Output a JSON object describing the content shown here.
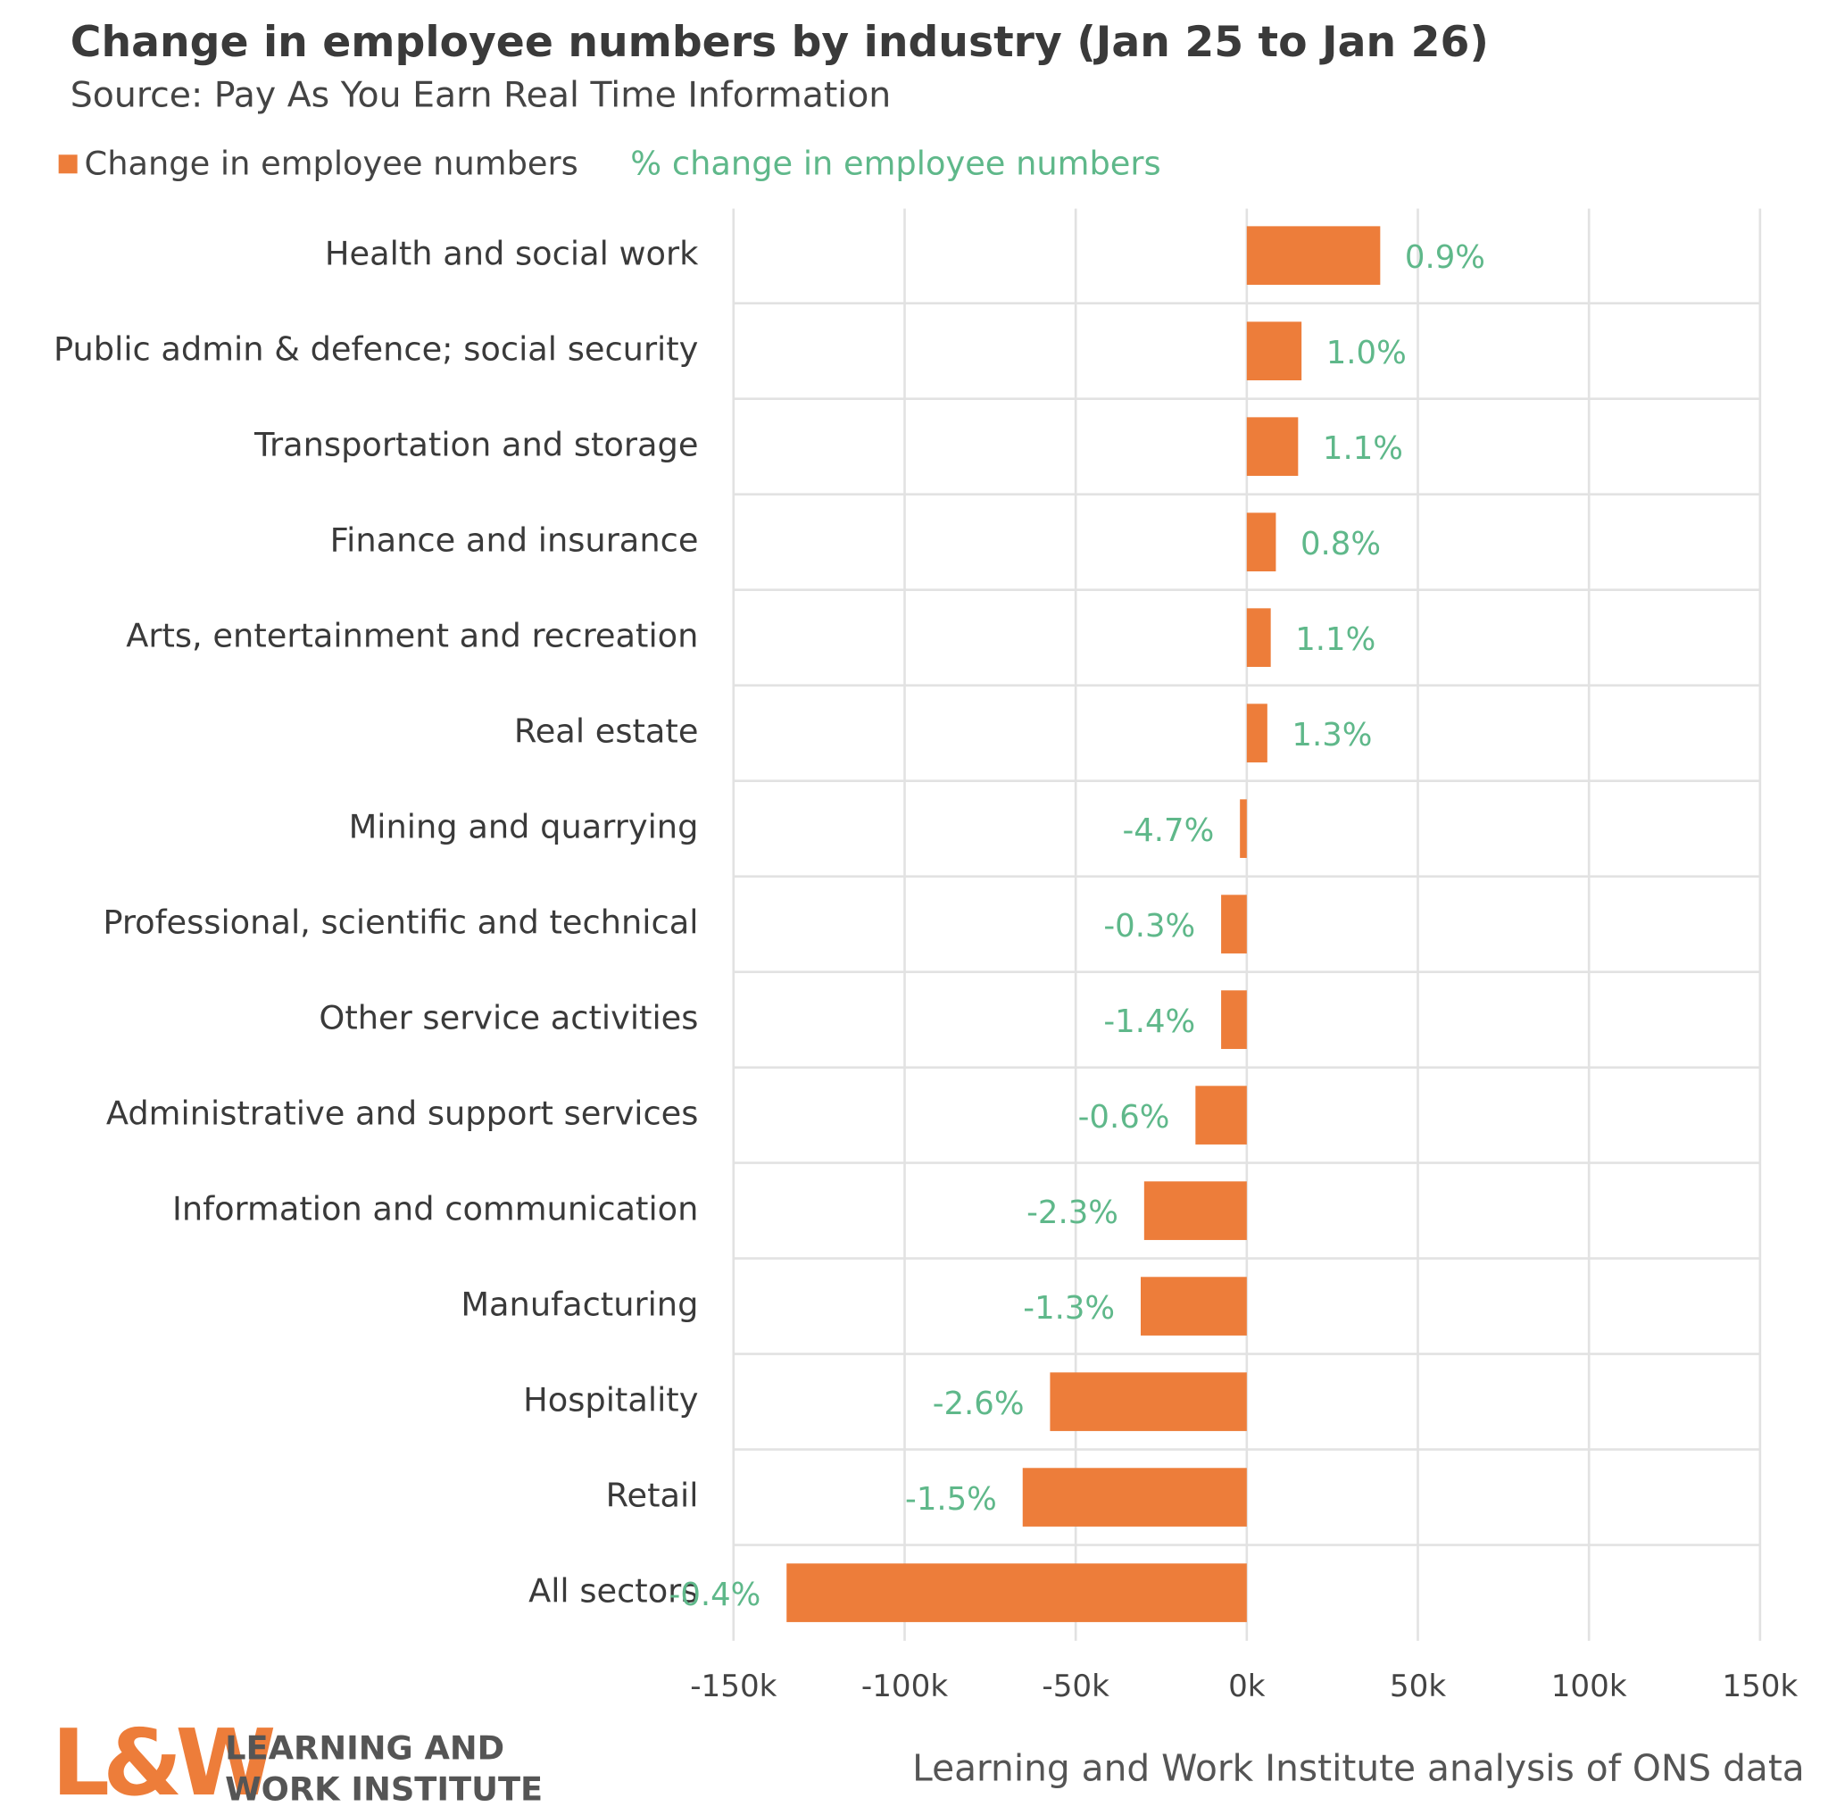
{
  "chart_data": {
    "type": "bar",
    "orientation": "horizontal",
    "title": "Change in employee numbers by industry (Jan 25 to Jan 26)",
    "subtitle": "Source: Pay As You Earn Real Time Information",
    "caption": "Learning and Work Institute analysis of ONS data",
    "categories": [
      "Health and social work",
      "Public admin & defence; social security",
      "Transportation and storage",
      "Finance and insurance",
      "Arts, entertainment and recreation",
      "Real estate",
      "Mining and quarrying",
      "Professional, scientific and technical",
      "Other service activities",
      "Administrative and support services",
      "Information and communication",
      "Manufacturing",
      "Hospitality",
      "Retail",
      "All sectors"
    ],
    "series": [
      {
        "name": "Change in employee numbers",
        "color": "#ed7d3a",
        "values": [
          39000,
          16000,
          15000,
          8500,
          7000,
          6000,
          -2000,
          -7500,
          -7500,
          -15000,
          -30000,
          -31000,
          -57500,
          -65500,
          -134500
        ]
      },
      {
        "name": "% change in employee numbers",
        "color": "#5fb88a",
        "values": [
          0.9,
          1.0,
          1.1,
          0.8,
          1.1,
          1.3,
          -4.7,
          -0.3,
          -1.4,
          -0.6,
          -2.3,
          -1.3,
          -2.6,
          -1.5,
          -0.4
        ],
        "value_labels": [
          "0.9%",
          "1.0%",
          "1.1%",
          "0.8%",
          "1.1%",
          "1.3%",
          "-4.7%",
          "-0.3%",
          "-1.4%",
          "-0.6%",
          "-2.3%",
          "-1.3%",
          "-2.6%",
          "-1.5%",
          "-0.4%"
        ]
      }
    ],
    "xlim": [
      -150000,
      150000
    ],
    "xticks": [
      {
        "value": -150000,
        "label": "-150k"
      },
      {
        "value": -100000,
        "label": "-100k"
      },
      {
        "value": -50000,
        "label": "-50k"
      },
      {
        "value": 0,
        "label": "0k"
      },
      {
        "value": 50000,
        "label": "50k"
      },
      {
        "value": 100000,
        "label": "100k"
      },
      {
        "value": 150000,
        "label": "150k"
      }
    ],
    "grid": true,
    "legend": "top-left"
  },
  "logo": {
    "mark": "L&W",
    "line1": "LEARNING AND",
    "line2": "WORK INSTITUTE"
  }
}
